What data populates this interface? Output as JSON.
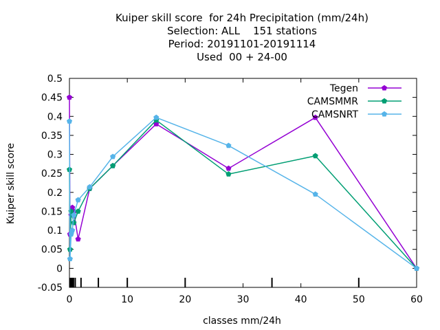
{
  "chart_data": {
    "type": "line",
    "title_lines": [
      "Kuiper skill score  for 24h Precipitation (mm/24h)",
      "Selection: ALL    151 stations",
      "Period: 20191101-20191114",
      "Used  00 + 24-00"
    ],
    "xlabel": "classes mm/24h",
    "ylabel": "Kuiper skill score",
    "xlim": [
      0,
      60
    ],
    "ylim": [
      -0.05,
      0.5
    ],
    "x_ticks": [
      0,
      10,
      20,
      30,
      40,
      50,
      60
    ],
    "y_ticks": [
      -0.05,
      0,
      0.05,
      0.1,
      0.15,
      0.2,
      0.25,
      0.3,
      0.35,
      0.4,
      0.45,
      0.5
    ],
    "y_tick_labels": [
      "-0.05",
      "0",
      "0.05",
      "0.1",
      "0.15",
      "0.2",
      "0.25",
      "0.3",
      "0.35",
      "0.4",
      "0.45",
      "0.5"
    ],
    "class_marks": [
      0.1,
      0.3,
      0.5,
      0.7,
      1,
      2,
      5,
      10,
      20,
      35,
      50
    ],
    "legend_position": "top-right",
    "series": [
      {
        "name": "Tegen",
        "color": "#9400d3",
        "marker": "pentagon",
        "points": [
          [
            0,
            0.45
          ],
          [
            0.1,
            0.09
          ],
          [
            0.3,
            0.14
          ],
          [
            0.5,
            0.16
          ],
          [
            0.75,
            0.15
          ],
          [
            1.5,
            0.077
          ],
          [
            3.5,
            0.21
          ],
          [
            7.5,
            0.27
          ],
          [
            15,
            0.38
          ],
          [
            27.5,
            0.263
          ],
          [
            42.5,
            0.397
          ],
          [
            60,
            0
          ]
        ]
      },
      {
        "name": "CAMSMMR",
        "color": "#009e73",
        "marker": "pentagon",
        "points": [
          [
            0,
            0.26
          ],
          [
            0.1,
            0.05
          ],
          [
            0.3,
            0.15
          ],
          [
            0.5,
            0.14
          ],
          [
            0.75,
            0.12
          ],
          [
            1.5,
            0.15
          ],
          [
            3.5,
            0.21
          ],
          [
            7.5,
            0.27
          ],
          [
            15,
            0.39
          ],
          [
            27.5,
            0.248
          ],
          [
            42.5,
            0.296
          ],
          [
            60,
            0
          ]
        ]
      },
      {
        "name": "CAMSNRT",
        "color": "#56b4e9",
        "marker": "pentagon",
        "points": [
          [
            0,
            0.387
          ],
          [
            0.1,
            0.025
          ],
          [
            0.3,
            0.09
          ],
          [
            0.5,
            0.1
          ],
          [
            0.75,
            0.14
          ],
          [
            1.5,
            0.18
          ],
          [
            3.5,
            0.214
          ],
          [
            7.5,
            0.294
          ],
          [
            15,
            0.397
          ],
          [
            27.5,
            0.323
          ],
          [
            42.5,
            0.195
          ],
          [
            60,
            0
          ]
        ]
      }
    ]
  }
}
